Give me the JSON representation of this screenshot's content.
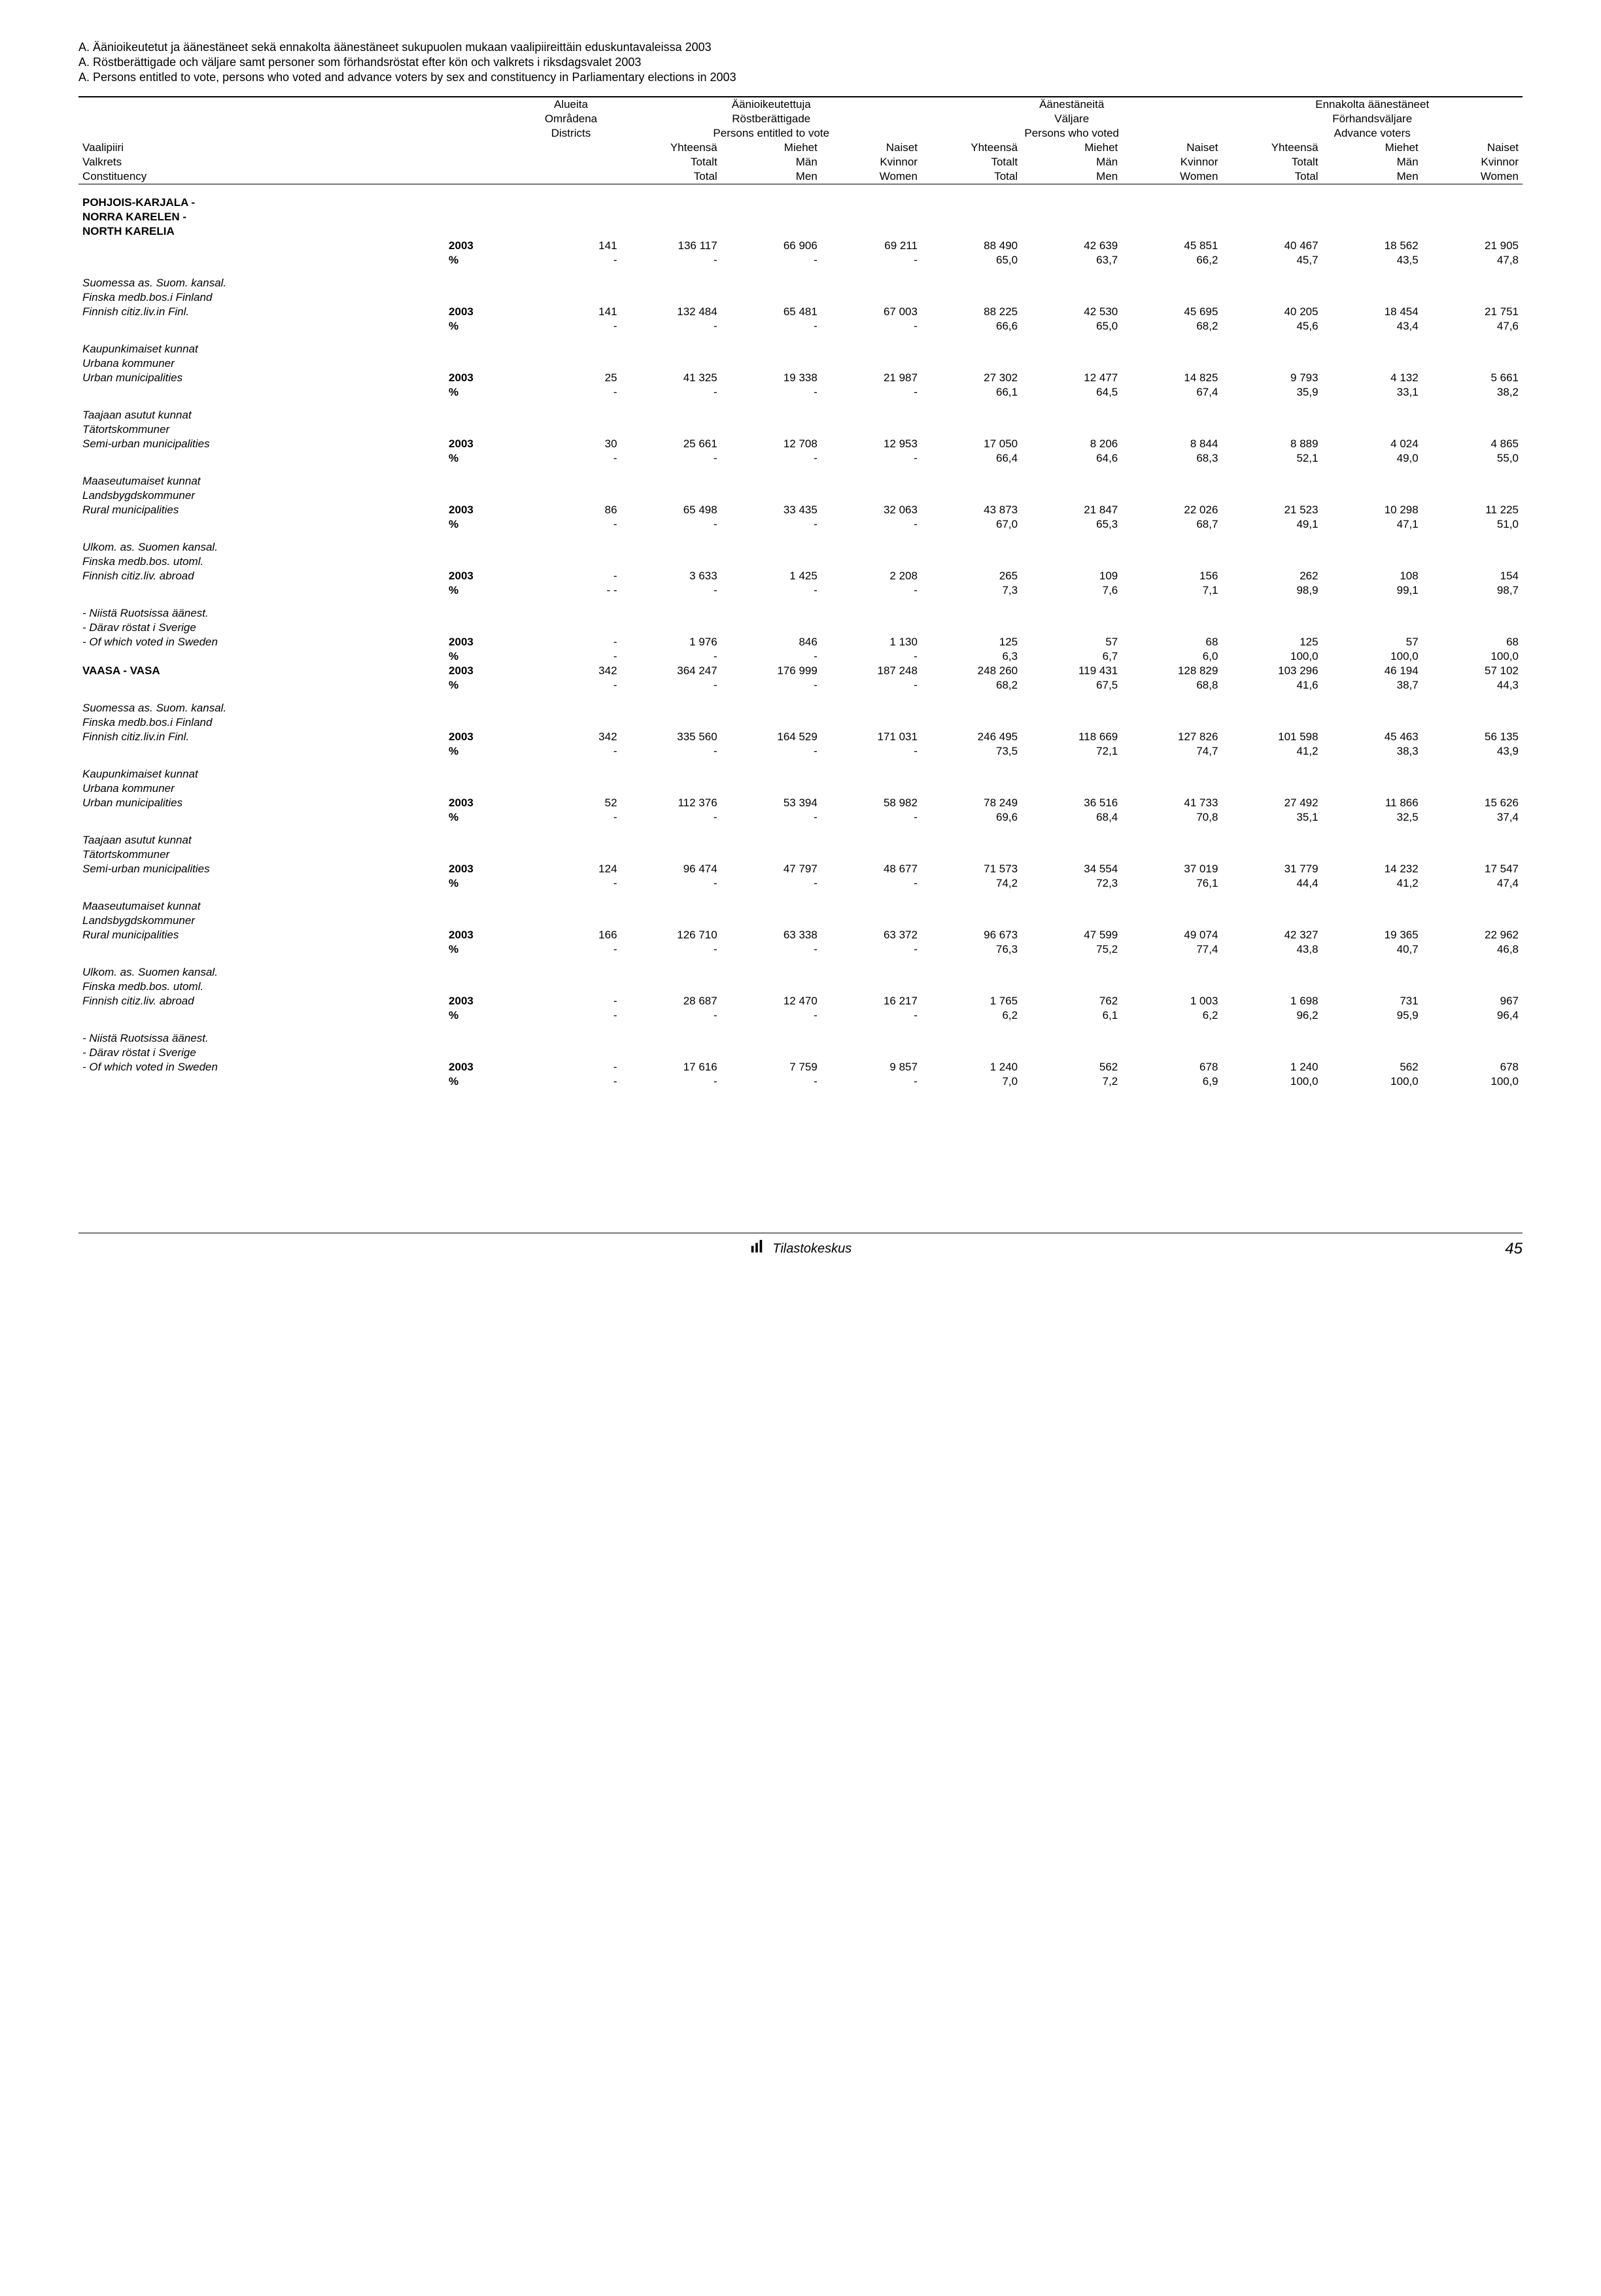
{
  "titles": [
    "A. Äänioikeutetut ja äänestäneet sekä ennakolta äänestäneet sukupuolen mukaan vaalipiireittäin eduskuntavaleissa 2003",
    "A. Röstberättigade och väljare samt personer som förhandsröstat efter kön och valkrets i riksdagsvalet 2003",
    "A. Persons entitled to vote, persons who voted and advance voters by sex and constituency in Parliamentary elections in 2003"
  ],
  "colHeaders": {
    "districts": [
      "Alueita",
      "Områdena",
      "Districts"
    ],
    "group1": [
      "Äänioikeutettuja",
      "Röstberättigade",
      "Persons entitled to vote"
    ],
    "group2": [
      "Äänestäneitä",
      "Väljare",
      "Persons who voted"
    ],
    "group3": [
      "Ennakolta äänestäneet",
      "Förhandsväljare",
      "Advance voters"
    ],
    "leftLabels": [
      "Vaalipiiri",
      "Valkrets",
      "Constituency"
    ],
    "total": [
      "Yhteensä",
      "Totalt",
      "Total"
    ],
    "men": [
      "Miehet",
      "Män",
      "Men"
    ],
    "women": [
      "Naiset",
      "Kvinnor",
      "Women"
    ]
  },
  "sections": [
    {
      "head": [
        "POHJOIS-KARJALA -",
        "NORRA KARELEN -",
        "NORTH KARELIA"
      ],
      "headBold": true,
      "rows": [
        {
          "label": "",
          "year": "2003",
          "vals": [
            "141",
            "136 117",
            "66 906",
            "69 211",
            "88 490",
            "42 639",
            "45 851",
            "40 467",
            "18 562",
            "21 905"
          ],
          "boldYear": true
        },
        {
          "label": "",
          "year": "%",
          "vals": [
            "-",
            "-",
            "-",
            "-",
            "65,0",
            "63,7",
            "66,2",
            "45,7",
            "43,5",
            "47,8"
          ],
          "boldYear": true
        }
      ]
    },
    {
      "pre": [
        "Suomessa as. Suom. kansal.",
        "Finska medb.bos.i Finland"
      ],
      "preItalic": true,
      "rows": [
        {
          "label": "Finnish citiz.liv.in Finl.",
          "italic": true,
          "year": "2003",
          "vals": [
            "141",
            "132 484",
            "65 481",
            "67 003",
            "88 225",
            "42 530",
            "45 695",
            "40 205",
            "18 454",
            "21 751"
          ],
          "boldYear": true
        },
        {
          "label": "",
          "year": "%",
          "vals": [
            "-",
            "-",
            "-",
            "-",
            "66,6",
            "65,0",
            "68,2",
            "45,6",
            "43,4",
            "47,6"
          ],
          "boldYear": true
        }
      ]
    },
    {
      "pre": [
        "Kaupunkimaiset kunnat",
        "Urbana kommuner"
      ],
      "preItalic": true,
      "rows": [
        {
          "label": "Urban municipalities",
          "italic": true,
          "year": "2003",
          "vals": [
            "25",
            "41 325",
            "19 338",
            "21 987",
            "27 302",
            "12 477",
            "14 825",
            "9 793",
            "4 132",
            "5 661"
          ],
          "boldYear": true
        },
        {
          "label": "",
          "year": "%",
          "vals": [
            "-",
            "-",
            "-",
            "-",
            "66,1",
            "64,5",
            "67,4",
            "35,9",
            "33,1",
            "38,2"
          ],
          "boldYear": true
        }
      ]
    },
    {
      "pre": [
        "Taajaan asutut kunnat",
        "Tätortskommuner"
      ],
      "preItalic": true,
      "rows": [
        {
          "label": "Semi-urban municipalities",
          "italic": true,
          "year": "2003",
          "vals": [
            "30",
            "25 661",
            "12 708",
            "12 953",
            "17 050",
            "8 206",
            "8 844",
            "8 889",
            "4 024",
            "4 865"
          ],
          "boldYear": true
        },
        {
          "label": "",
          "year": "%",
          "vals": [
            "-",
            "-",
            "-",
            "-",
            "66,4",
            "64,6",
            "68,3",
            "52,1",
            "49,0",
            "55,0"
          ],
          "boldYear": true
        }
      ]
    },
    {
      "pre": [
        "Maaseutumaiset kunnat",
        "Landsbygdskommuner"
      ],
      "preItalic": true,
      "rows": [
        {
          "label": "Rural municipalities",
          "italic": true,
          "year": "2003",
          "vals": [
            "86",
            "65 498",
            "33 435",
            "32 063",
            "43 873",
            "21 847",
            "22 026",
            "21 523",
            "10 298",
            "11 225"
          ],
          "boldYear": true
        },
        {
          "label": "",
          "year": "%",
          "vals": [
            "-",
            "-",
            "-",
            "-",
            "67,0",
            "65,3",
            "68,7",
            "49,1",
            "47,1",
            "51,0"
          ],
          "boldYear": true
        }
      ]
    },
    {
      "pre": [
        "Ulkom. as. Suomen kansal.",
        "Finska medb.bos. utoml."
      ],
      "preItalic": true,
      "rows": [
        {
          "label": "Finnish citiz.liv. abroad",
          "italic": true,
          "year": "2003",
          "vals": [
            "-",
            "3 633",
            "1 425",
            "2 208",
            "265",
            "109",
            "156",
            "262",
            "108",
            "154"
          ],
          "boldYear": true
        },
        {
          "label": "",
          "year": "%",
          "vals": [
            "- -",
            "-",
            "-",
            "-",
            "7,3",
            "7,6",
            "7,1",
            "98,9",
            "99,1",
            "98,7"
          ],
          "boldYear": true
        }
      ]
    },
    {
      "pre": [
        "- Niistä Ruotsissa äänest.",
        "- Därav röstat i Sverige"
      ],
      "preItalic": true,
      "rows": [
        {
          "label": "- Of which voted in Sweden",
          "italic": true,
          "year": "2003",
          "vals": [
            "-",
            "1 976",
            "846",
            "1 130",
            "125",
            "57",
            "68",
            "125",
            "57",
            "68"
          ],
          "boldYear": true
        },
        {
          "label": "",
          "year": "%",
          "vals": [
            "-",
            "-",
            "-",
            "-",
            "6,3",
            "6,7",
            "6,0",
            "100,0",
            "100,0",
            "100,0"
          ],
          "boldYear": true
        }
      ]
    },
    {
      "head": [
        "VAASA - VASA"
      ],
      "headBold": true,
      "rowGap": true,
      "rows": [
        {
          "label": "",
          "year": "2003",
          "vals": [
            "342",
            "364 247",
            "176 999",
            "187 248",
            "248 260",
            "119 431",
            "128 829",
            "103 296",
            "46 194",
            "57 102"
          ],
          "boldYear": true,
          "sameRowHead": true
        },
        {
          "label": "",
          "year": "%",
          "vals": [
            "-",
            "-",
            "-",
            "-",
            "68,2",
            "67,5",
            "68,8",
            "41,6",
            "38,7",
            "44,3"
          ],
          "boldYear": true
        }
      ]
    },
    {
      "pre": [
        "Suomessa as. Suom. kansal.",
        "Finska medb.bos.i Finland"
      ],
      "preItalic": true,
      "rows": [
        {
          "label": "Finnish citiz.liv.in Finl.",
          "italic": true,
          "year": "2003",
          "vals": [
            "342",
            "335 560",
            "164 529",
            "171 031",
            "246 495",
            "118 669",
            "127 826",
            "101 598",
            "45 463",
            "56 135"
          ],
          "boldYear": true
        },
        {
          "label": "",
          "year": "%",
          "vals": [
            "-",
            "-",
            "-",
            "-",
            "73,5",
            "72,1",
            "74,7",
            "41,2",
            "38,3",
            "43,9"
          ],
          "boldYear": true
        }
      ]
    },
    {
      "pre": [
        "Kaupunkimaiset kunnat",
        "Urbana kommuner"
      ],
      "preItalic": true,
      "rows": [
        {
          "label": "Urban municipalities",
          "italic": true,
          "year": "2003",
          "vals": [
            "52",
            "112 376",
            "53 394",
            "58 982",
            "78 249",
            "36 516",
            "41 733",
            "27 492",
            "11 866",
            "15 626"
          ],
          "boldYear": true
        },
        {
          "label": "",
          "year": "%",
          "vals": [
            "-",
            "-",
            "-",
            "-",
            "69,6",
            "68,4",
            "70,8",
            "35,1",
            "32,5",
            "37,4"
          ],
          "boldYear": true
        }
      ]
    },
    {
      "pre": [
        "Taajaan asutut kunnat",
        "Tätortskommuner"
      ],
      "preItalic": true,
      "rows": [
        {
          "label": "Semi-urban municipalities",
          "italic": true,
          "year": "2003",
          "vals": [
            "124",
            "96 474",
            "47 797",
            "48 677",
            "71 573",
            "34 554",
            "37 019",
            "31 779",
            "14 232",
            "17 547"
          ],
          "boldYear": true
        },
        {
          "label": "",
          "year": "%",
          "vals": [
            "-",
            "-",
            "-",
            "-",
            "74,2",
            "72,3",
            "76,1",
            "44,4",
            "41,2",
            "47,4"
          ],
          "boldYear": true
        }
      ]
    },
    {
      "pre": [
        "Maaseutumaiset kunnat",
        "Landsbygdskommuner"
      ],
      "preItalic": true,
      "rows": [
        {
          "label": "Rural municipalities",
          "italic": true,
          "year": "2003",
          "vals": [
            "166",
            "126 710",
            "63 338",
            "63 372",
            "96 673",
            "47 599",
            "49 074",
            "42 327",
            "19 365",
            "22 962"
          ],
          "boldYear": true
        },
        {
          "label": "",
          "year": "%",
          "vals": [
            "-",
            "-",
            "-",
            "-",
            "76,3",
            "75,2",
            "77,4",
            "43,8",
            "40,7",
            "46,8"
          ],
          "boldYear": true
        }
      ]
    },
    {
      "pre": [
        "Ulkom. as. Suomen kansal.",
        "Finska medb.bos. utoml."
      ],
      "preItalic": true,
      "rows": [
        {
          "label": "Finnish citiz.liv. abroad",
          "italic": true,
          "year": "2003",
          "vals": [
            "-",
            "28 687",
            "12 470",
            "16 217",
            "1 765",
            "762",
            "1 003",
            "1 698",
            "731",
            "967"
          ],
          "boldYear": true
        },
        {
          "label": "",
          "year": "%",
          "vals": [
            "-",
            "-",
            "-",
            "-",
            "6,2",
            "6,1",
            "6,2",
            "96,2",
            "95,9",
            "96,4"
          ],
          "boldYear": true
        }
      ]
    },
    {
      "pre": [
        "- Niistä Ruotsissa äänest.",
        "- Därav röstat i Sverige"
      ],
      "preItalic": true,
      "rows": [
        {
          "label": "- Of which voted in Sweden",
          "italic": true,
          "year": "2003",
          "vals": [
            "-",
            "17 616",
            "7 759",
            "9 857",
            "1 240",
            "562",
            "678",
            "1 240",
            "562",
            "678"
          ],
          "boldYear": true
        },
        {
          "label": "",
          "year": "%",
          "vals": [
            "-",
            "-",
            "-",
            "-",
            "7,0",
            "7,2",
            "6,9",
            "100,0",
            "100,0",
            "100,0"
          ],
          "boldYear": true
        }
      ]
    }
  ],
  "footer": {
    "brand": "Tilastokeskus",
    "page": "45"
  }
}
